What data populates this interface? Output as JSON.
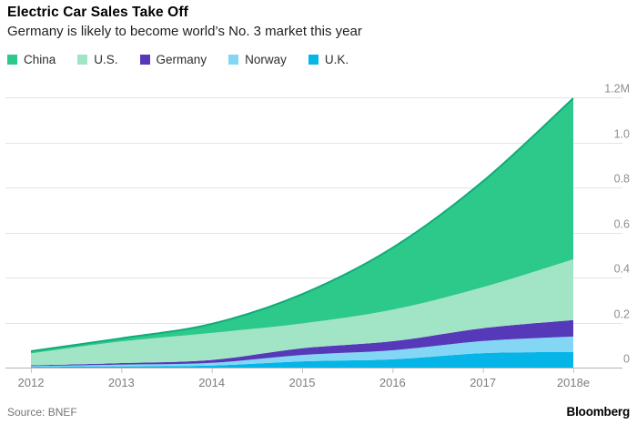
{
  "header": {
    "title": "Electric Car Sales Take Off",
    "subtitle": "Germany is likely to become world’s No. 3 market this year"
  },
  "legend": {
    "items": [
      {
        "label": "China",
        "color": "#2dc98b"
      },
      {
        "label": "U.S.",
        "color": "#a2e4c6"
      },
      {
        "label": "Germany",
        "color": "#5639b8"
      },
      {
        "label": "Norway",
        "color": "#84d7f4"
      },
      {
        "label": "U.K.",
        "color": "#06b5e8"
      }
    ]
  },
  "chart_data": {
    "type": "area",
    "stacked": true,
    "title": "Electric Car Sales Take Off",
    "subtitle": "Germany is likely to become world’s No. 3 market this year",
    "unit": "vehicles per year",
    "x": [
      "2012",
      "2013",
      "2014",
      "2015",
      "2016",
      "2017",
      "2018e"
    ],
    "series": [
      {
        "name": "China",
        "color": "#2dc98b",
        "top_line_color": "#10ab79",
        "values": [
          10000,
          14000,
          40000,
          130000,
          275000,
          470000,
          715000
        ]
      },
      {
        "name": "U.S.",
        "color": "#a2e4c6",
        "values": [
          53000,
          96000,
          120000,
          110000,
          140000,
          182000,
          270000
        ]
      },
      {
        "name": "Germany",
        "color": "#5639b8",
        "values": [
          3000,
          7000,
          13000,
          30000,
          40000,
          57000,
          73000
        ]
      },
      {
        "name": "Norway",
        "color": "#84d7f4",
        "values": [
          4000,
          8000,
          12000,
          28000,
          40000,
          54000,
          69000
        ]
      },
      {
        "name": "U.K.",
        "color": "#06b5e8",
        "values": [
          3000,
          5000,
          9000,
          28000,
          37000,
          64000,
          69000
        ]
      }
    ],
    "stack_order_bottom_to_top": [
      "U.K.",
      "Norway",
      "Germany",
      "U.S.",
      "China"
    ],
    "totals": [
      73000,
      130000,
      194000,
      326000,
      532000,
      827000,
      1196000
    ],
    "ylim": [
      0,
      1200000
    ],
    "yticks": [
      {
        "label": "1.2M",
        "value": 1200000
      },
      {
        "label": "1.0",
        "value": 1000000
      },
      {
        "label": "0.8",
        "value": 800000
      },
      {
        "label": "0.6",
        "value": 600000
      },
      {
        "label": "0.4",
        "value": 400000
      },
      {
        "label": "0.2",
        "value": 200000
      },
      {
        "label": "0",
        "value": 0
      }
    ],
    "grid": "horizontal",
    "y_axis_side": "right",
    "legend_position": "top"
  },
  "footer": {
    "source": "Source: BNEF",
    "brand": "Bloomberg"
  }
}
